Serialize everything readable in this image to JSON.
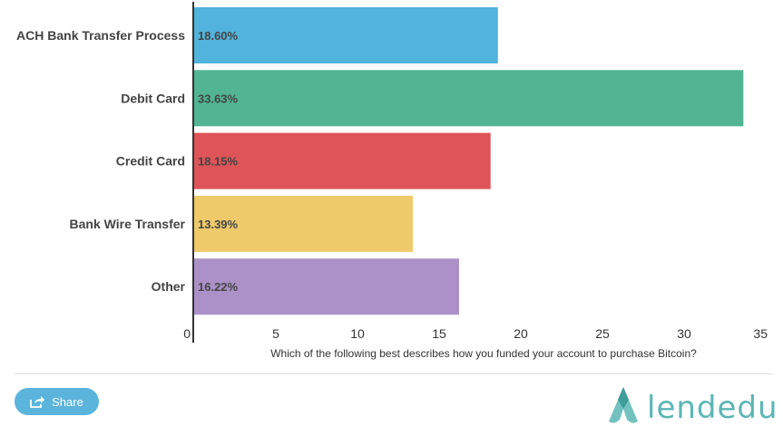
{
  "chart_data": {
    "type": "bar",
    "orientation": "horizontal",
    "categories": [
      "ACH Bank Transfer Process",
      "Debit Card",
      "Credit Card",
      "Bank Wire Transfer",
      "Other"
    ],
    "values": [
      18.6,
      33.63,
      18.15,
      13.39,
      16.22
    ],
    "data_labels": [
      "18.60%",
      "33.63%",
      "18.15%",
      "13.39%",
      "16.22%"
    ],
    "colors": [
      "#52b3dc",
      "#51b593",
      "#de5458",
      "#efca6b",
      "#ab91c8"
    ],
    "label_colors": [
      "#444444",
      "#444444",
      "#ffffff",
      "#444444",
      "#444444"
    ],
    "xlabel": "Which of the following best describes how you funded your account to purchase Bitcoin?",
    "xlim": [
      0,
      35
    ],
    "xticks": [
      0,
      5,
      10,
      15,
      20,
      25,
      30,
      35
    ],
    "grid": false,
    "legend": "none"
  },
  "footer": {
    "share_label": "Share",
    "share_icon": "share-icon",
    "logo_text": "lendedu",
    "logo_icon": "lendedu-logo-icon",
    "logo_color": "#5ab7b4",
    "button_color": "#5ab4dc"
  }
}
